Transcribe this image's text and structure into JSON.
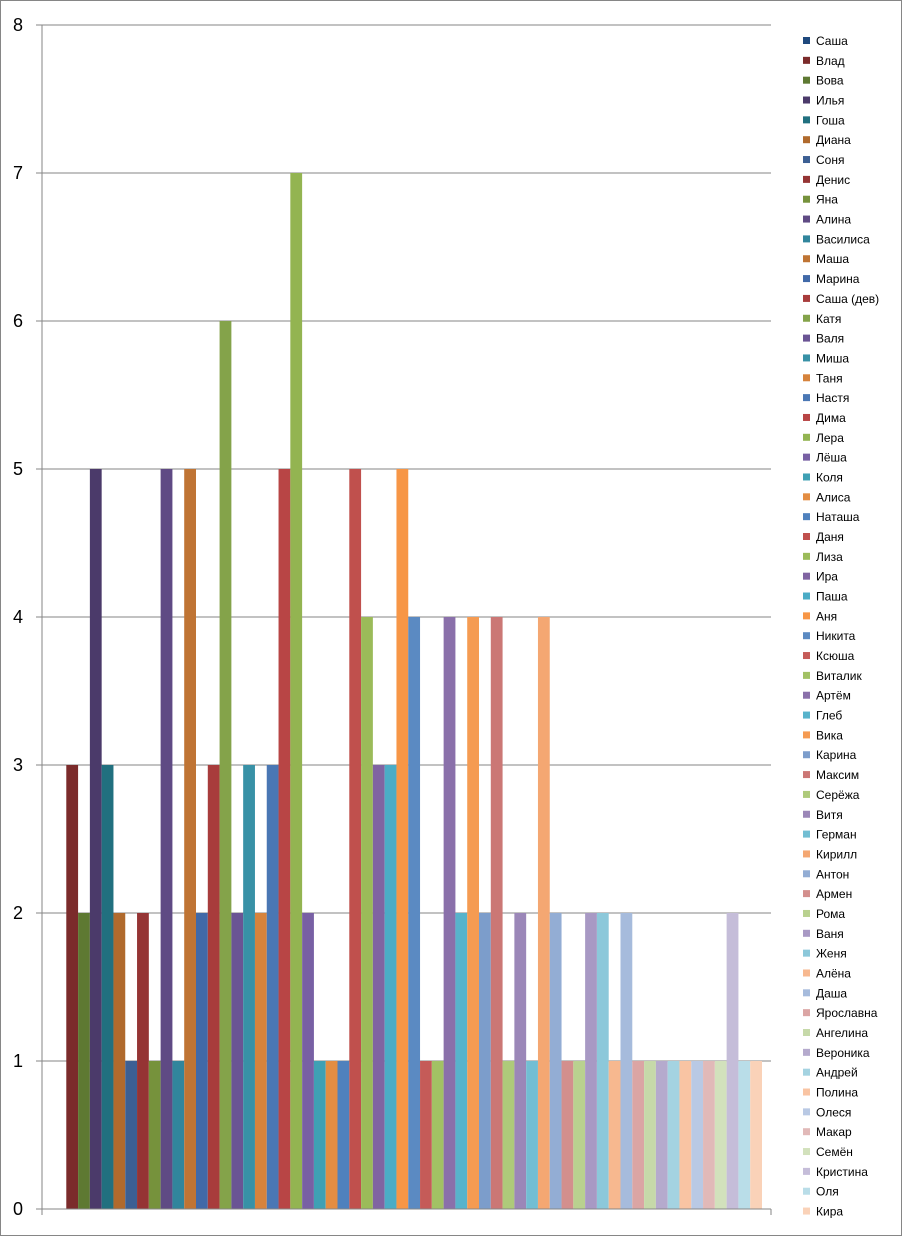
{
  "chart_data": {
    "type": "bar",
    "title": "",
    "xlabel": "",
    "ylabel": "",
    "ylim": [
      0,
      8
    ],
    "yticks": [
      0,
      1,
      2,
      3,
      4,
      5,
      6,
      7,
      8
    ],
    "grid": true,
    "legend_position": "right",
    "series": [
      {
        "name": "Саша",
        "value": 0,
        "color": "#1F497D"
      },
      {
        "name": "Влад",
        "value": 3,
        "color": "#7B2B2B"
      },
      {
        "name": "Вова",
        "value": 2,
        "color": "#5E7932"
      },
      {
        "name": "Илья",
        "value": 5,
        "color": "#4B3A6A"
      },
      {
        "name": "Гоша",
        "value": 3,
        "color": "#21707F"
      },
      {
        "name": "Диана",
        "value": 2,
        "color": "#B06A2D"
      },
      {
        "name": "Соня",
        "value": 1,
        "color": "#3C5F93"
      },
      {
        "name": "Денис",
        "value": 2,
        "color": "#953434"
      },
      {
        "name": "Яна",
        "value": 1,
        "color": "#76923C"
      },
      {
        "name": "Алина",
        "value": 5,
        "color": "#5F4A84"
      },
      {
        "name": "Василиса",
        "value": 1,
        "color": "#31859C"
      },
      {
        "name": "Маша",
        "value": 5,
        "color": "#BF7434"
      },
      {
        "name": "Марина",
        "value": 2,
        "color": "#4169A8"
      },
      {
        "name": "Саша (дев)",
        "value": 3,
        "color": "#A83C3C"
      },
      {
        "name": "Катя",
        "value": 6,
        "color": "#84A34A"
      },
      {
        "name": "Валя",
        "value": 2,
        "color": "#6A5494"
      },
      {
        "name": "Миша",
        "value": 3,
        "color": "#3891A6"
      },
      {
        "name": "Таня",
        "value": 2,
        "color": "#D6833C"
      },
      {
        "name": "Настя",
        "value": 3,
        "color": "#4A77B4"
      },
      {
        "name": "Дима",
        "value": 5,
        "color": "#B84545"
      },
      {
        "name": "Лера",
        "value": 7,
        "color": "#93B451"
      },
      {
        "name": "Лёша",
        "value": 2,
        "color": "#7860A4"
      },
      {
        "name": "Коля",
        "value": 1,
        "color": "#3FA0B4"
      },
      {
        "name": "Алиса",
        "value": 1,
        "color": "#E38D42"
      },
      {
        "name": "Наташа",
        "value": 1,
        "color": "#4F81BD"
      },
      {
        "name": "Даня",
        "value": 5,
        "color": "#C0504D"
      },
      {
        "name": "Лиза",
        "value": 4,
        "color": "#9BBB59"
      },
      {
        "name": "Ира",
        "value": 3,
        "color": "#8064A2"
      },
      {
        "name": "Паша",
        "value": 3,
        "color": "#4BACC6"
      },
      {
        "name": "Аня",
        "value": 5,
        "color": "#F79646"
      },
      {
        "name": "Никита",
        "value": 4,
        "color": "#5B8AC2"
      },
      {
        "name": "Ксюша",
        "value": 1,
        "color": "#C55B58"
      },
      {
        "name": "Виталик",
        "value": 1,
        "color": "#A2C164"
      },
      {
        "name": "Артём",
        "value": 4,
        "color": "#8A70AA"
      },
      {
        "name": "Глеб",
        "value": 2,
        "color": "#57B3CB"
      },
      {
        "name": "Вика",
        "value": 4,
        "color": "#F59B52"
      },
      {
        "name": "Карина",
        "value": 2,
        "color": "#7C9DCB"
      },
      {
        "name": "Максим",
        "value": 4,
        "color": "#CB7775"
      },
      {
        "name": "Серёжа",
        "value": 1,
        "color": "#AECA7A"
      },
      {
        "name": "Витя",
        "value": 2,
        "color": "#9B87B8"
      },
      {
        "name": "Герман",
        "value": 1,
        "color": "#72BED3"
      },
      {
        "name": "Кирилл",
        "value": 4,
        "color": "#F4A772"
      },
      {
        "name": "Антон",
        "value": 2,
        "color": "#93ADD4"
      },
      {
        "name": "Армен",
        "value": 1,
        "color": "#D38F8D"
      },
      {
        "name": "Рома",
        "value": 1,
        "color": "#B9D18F"
      },
      {
        "name": "Ваня",
        "value": 2,
        "color": "#A899C4"
      },
      {
        "name": "Женя",
        "value": 2,
        "color": "#8CC8DA"
      },
      {
        "name": "Алёна",
        "value": 1,
        "color": "#F7B88F"
      },
      {
        "name": "Даша",
        "value": 2,
        "color": "#A6BBDC"
      },
      {
        "name": "Ярославна",
        "value": 1,
        "color": "#DBA5A4"
      },
      {
        "name": "Ангелина",
        "value": 1,
        "color": "#C6D9A9"
      },
      {
        "name": "Вероника",
        "value": 1,
        "color": "#B5AACD"
      },
      {
        "name": "Андрей",
        "value": 1,
        "color": "#A4D3E1"
      },
      {
        "name": "Полина",
        "value": 1,
        "color": "#F9C4A3"
      },
      {
        "name": "Олеся",
        "value": 1,
        "color": "#B9C9E4"
      },
      {
        "name": "Макар",
        "value": 1,
        "color": "#E1B9B8"
      },
      {
        "name": "Семён",
        "value": 1,
        "color": "#D2E1BC"
      },
      {
        "name": "Кристина",
        "value": 2,
        "color": "#C5BDD9"
      },
      {
        "name": "Оля",
        "value": 1,
        "color": "#B9DDE8"
      },
      {
        "name": "Кира",
        "value": 1,
        "color": "#FAD2B8"
      }
    ]
  }
}
